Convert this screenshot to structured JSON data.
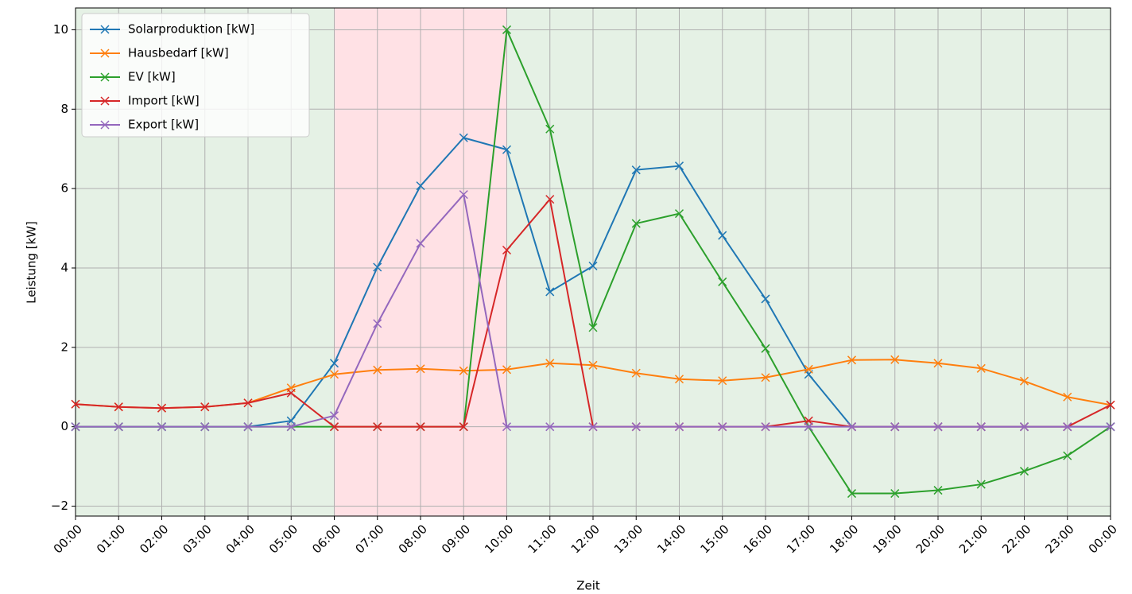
{
  "chart_data": {
    "type": "line",
    "x_label": "Zeit",
    "y_label": "Leistung [kW]",
    "x": [
      0,
      1,
      2,
      3,
      4,
      5,
      6,
      7,
      8,
      9,
      10,
      11,
      12,
      13,
      14,
      15,
      16,
      17,
      18,
      19,
      20,
      21,
      22,
      23,
      24
    ],
    "xlim": [
      0,
      24
    ],
    "xticks": [
      {
        "value": 0,
        "label": "00:00"
      },
      {
        "value": 1,
        "label": "01:00"
      },
      {
        "value": 2,
        "label": "02:00"
      },
      {
        "value": 3,
        "label": "03:00"
      },
      {
        "value": 4,
        "label": "04:00"
      },
      {
        "value": 5,
        "label": "05:00"
      },
      {
        "value": 6,
        "label": "06:00"
      },
      {
        "value": 7,
        "label": "07:00"
      },
      {
        "value": 8,
        "label": "08:00"
      },
      {
        "value": 9,
        "label": "09:00"
      },
      {
        "value": 10,
        "label": "10:00"
      },
      {
        "value": 11,
        "label": "11:00"
      },
      {
        "value": 12,
        "label": "12:00"
      },
      {
        "value": 13,
        "label": "13:00"
      },
      {
        "value": 14,
        "label": "14:00"
      },
      {
        "value": 15,
        "label": "15:00"
      },
      {
        "value": 16,
        "label": "16:00"
      },
      {
        "value": 17,
        "label": "17:00"
      },
      {
        "value": 18,
        "label": "18:00"
      },
      {
        "value": 19,
        "label": "19:00"
      },
      {
        "value": 20,
        "label": "20:00"
      },
      {
        "value": 21,
        "label": "21:00"
      },
      {
        "value": 22,
        "label": "22:00"
      },
      {
        "value": 23,
        "label": "23:00"
      },
      {
        "value": 24,
        "label": "00:00"
      }
    ],
    "ylim": [
      -2.25,
      10.55
    ],
    "yticks": [
      {
        "value": -2,
        "label": "−2"
      },
      0,
      2,
      4,
      6,
      8,
      10
    ],
    "grid": true,
    "legend": "upper left",
    "spans": [
      {
        "from": 0,
        "to": 6,
        "color": "#e5f1e5"
      },
      {
        "from": 6,
        "to": 10,
        "color": "#ffe1e5"
      },
      {
        "from": 10,
        "to": 24,
        "color": "#e5f1e5"
      }
    ],
    "series": [
      {
        "name": "Solarproduktion [kW]",
        "color": "#1f77b4",
        "values": [
          0,
          0,
          0,
          0,
          0,
          0.15,
          1.6,
          4.02,
          6.07,
          7.28,
          6.98,
          3.4,
          4.05,
          6.47,
          6.57,
          4.82,
          3.22,
          1.32,
          0,
          0,
          0,
          0,
          0,
          0,
          0
        ]
      },
      {
        "name": "Hausbedarf [kW]",
        "color": "#ff7f0e",
        "values": [
          0.57,
          0.5,
          0.47,
          0.5,
          0.6,
          0.98,
          1.32,
          1.43,
          1.46,
          1.41,
          1.44,
          1.6,
          1.55,
          1.35,
          1.2,
          1.16,
          1.24,
          1.45,
          1.68,
          1.69,
          1.6,
          1.47,
          1.15,
          0.75,
          0.55
        ]
      },
      {
        "name": "EV [kW]",
        "color": "#2ca02c",
        "values": [
          0,
          0,
          0,
          0,
          0,
          0,
          0,
          0,
          0,
          0,
          10,
          7.5,
          2.5,
          5.12,
          5.37,
          3.65,
          1.97,
          0,
          -1.68,
          -1.68,
          -1.6,
          -1.45,
          -1.12,
          -0.73,
          0
        ]
      },
      {
        "name": "Import [kW]",
        "color": "#d62728",
        "values": [
          0.57,
          0.5,
          0.47,
          0.5,
          0.6,
          0.85,
          0,
          0,
          0,
          0,
          4.45,
          5.73,
          0,
          0,
          0,
          0,
          0,
          0.15,
          0,
          0,
          0,
          0,
          0,
          0,
          0.55
        ]
      },
      {
        "name": "Export [kW]",
        "color": "#9467bd",
        "values": [
          0,
          0,
          0,
          0,
          0,
          0,
          0.28,
          2.6,
          4.62,
          5.85,
          0,
          0,
          0,
          0,
          0,
          0,
          0,
          0,
          0,
          0,
          0,
          0,
          0,
          0,
          0
        ]
      }
    ]
  }
}
